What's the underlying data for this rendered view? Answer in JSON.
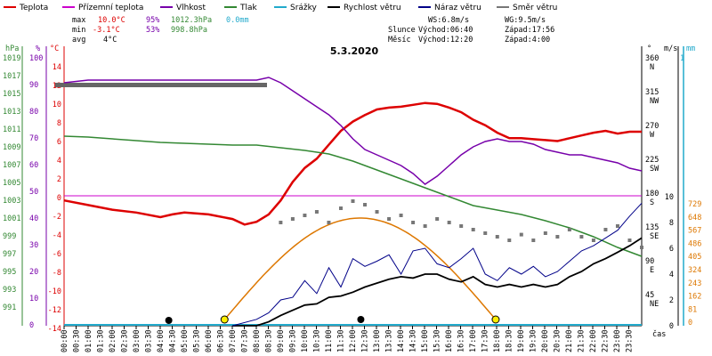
{
  "legend": [
    {
      "label": "Teplota",
      "color": "#dd0000"
    },
    {
      "label": "Přízemní teplota",
      "color": "#cc00cc"
    },
    {
      "label": "Vlhkost",
      "color": "#7700aa"
    },
    {
      "label": "Tlak",
      "color": "#338833"
    },
    {
      "label": "Srážky",
      "color": "#22aacc"
    },
    {
      "label": "Rychlost větru",
      "color": "#000000"
    },
    {
      "label": "Náraz větru",
      "color": "#000088"
    },
    {
      "label": "Směr větru",
      "color": "#777777"
    }
  ],
  "stats": {
    "max": {
      "label": "max",
      "temp": "10.0°C",
      "hum": "95%",
      "press": "1012.3hPa",
      "rain": "0.0mm"
    },
    "min": {
      "label": "min",
      "temp": "-3.1°C",
      "hum": "53%",
      "press": "998.8hPa"
    },
    "avg": {
      "label": "avg",
      "temp": "4°C"
    }
  },
  "wind_info": {
    "ws": "WS:6.8m/s",
    "wg": "WG:9.5m/s",
    "sun_label": "Slunce",
    "sun_rise": "Východ:06:40",
    "sun_set": "Západ:17:56",
    "moon_label": "Měsíc",
    "moon_rise": "Východ:12:20",
    "moon_set": "Západ:4:00"
  },
  "date": "5.3.2020",
  "axis_units": {
    "hpa": "hPa",
    "pct": "%",
    "deg": "°C",
    "dir": "°",
    "ms": "m/s",
    "mm": "mm",
    "cas": "čas"
  },
  "x_ticks": [
    "00:00",
    "00:30",
    "01:00",
    "01:30",
    "02:00",
    "02:30",
    "03:00",
    "03:30",
    "04:00",
    "04:30",
    "05:00",
    "05:30",
    "06:00",
    "06:30",
    "07:00",
    "07:30",
    "08:00",
    "08:30",
    "09:00",
    "09:30",
    "10:00",
    "10:30",
    "11:00",
    "11:30",
    "12:00",
    "12:30",
    "13:00",
    "13:30",
    "14:00",
    "14:30",
    "15:00",
    "15:30",
    "16:00",
    "16:30",
    "17:00",
    "17:30",
    "18:00",
    "18:30",
    "19:00",
    "19:30",
    "20:00",
    "20:30",
    "21:00",
    "21:30",
    "22:00",
    "22:30",
    "23:00",
    "23:30"
  ],
  "y_left_hpa": [
    "1019",
    "1017",
    "1015",
    "1013",
    "1011",
    "1009",
    "1007",
    "1005",
    "1003",
    "1001",
    "999",
    "997",
    "995",
    "993",
    "991"
  ],
  "y_left_pct": [
    "100",
    "90",
    "80",
    "70",
    "60",
    "50",
    "40",
    "30",
    "20",
    "10",
    "0"
  ],
  "y_left_deg": [
    "14",
    "12",
    "10",
    "8",
    "6",
    "4",
    "2",
    "0",
    "-2",
    "-4",
    "-6",
    "-8",
    "-10",
    "-12",
    "-14"
  ],
  "y_right_dir": [
    {
      "value": "360",
      "dir": "N"
    },
    {
      "value": "315",
      "dir": "NW"
    },
    {
      "value": "270",
      "dir": "W"
    },
    {
      "value": "225",
      "dir": "SW"
    },
    {
      "value": "180",
      "dir": "S"
    },
    {
      "value": "135",
      "dir": "SE"
    },
    {
      "value": "90",
      "dir": "E"
    },
    {
      "value": "45",
      "dir": "NE"
    }
  ],
  "y_right_ms": [
    "10",
    "8",
    "6",
    "4",
    "2",
    "0"
  ],
  "y_right_mm_top": [
    "1"
  ],
  "y_right_mm": [
    "729",
    "648",
    "567",
    "486",
    "405",
    "324",
    "243",
    "162",
    "81",
    "0"
  ],
  "chart_data": {
    "type": "line",
    "title": "5.3.2020",
    "xlabel": "čas",
    "x_range_hours": [
      0,
      24
    ],
    "series": [
      {
        "name": "Teplota",
        "unit": "°C",
        "color": "#dd0000",
        "points": [
          [
            0,
            -0.5
          ],
          [
            1,
            -1
          ],
          [
            2,
            -1.5
          ],
          [
            3,
            -1.8
          ],
          [
            4,
            -2.3
          ],
          [
            4.5,
            -2.0
          ],
          [
            5,
            -1.8
          ],
          [
            6,
            -2.0
          ],
          [
            7,
            -2.5
          ],
          [
            7.5,
            -3.1
          ],
          [
            8,
            -2.8
          ],
          [
            8.5,
            -2.0
          ],
          [
            9,
            -0.5
          ],
          [
            9.5,
            1.5
          ],
          [
            10,
            3.0
          ],
          [
            10.5,
            4.0
          ],
          [
            11,
            5.5
          ],
          [
            11.5,
            7.0
          ],
          [
            12,
            8.0
          ],
          [
            12.5,
            8.7
          ],
          [
            13,
            9.3
          ],
          [
            13.5,
            9.5
          ],
          [
            14,
            9.6
          ],
          [
            14.5,
            9.8
          ],
          [
            15,
            10.0
          ],
          [
            15.5,
            9.9
          ],
          [
            16,
            9.5
          ],
          [
            16.5,
            9.0
          ],
          [
            17,
            8.2
          ],
          [
            17.5,
            7.6
          ],
          [
            18,
            6.8
          ],
          [
            18.5,
            6.2
          ],
          [
            19,
            6.2
          ],
          [
            19.5,
            6.1
          ],
          [
            20,
            6.0
          ],
          [
            20.5,
            5.9
          ],
          [
            21,
            6.2
          ],
          [
            21.5,
            6.5
          ],
          [
            22,
            6.8
          ],
          [
            22.5,
            7.0
          ],
          [
            23,
            6.7
          ],
          [
            23.5,
            6.9
          ],
          [
            24,
            6.9
          ]
        ]
      },
      {
        "name": "Přízemní teplota",
        "unit": "°C",
        "color": "#cc00cc",
        "points": [
          [
            0,
            0
          ],
          [
            24,
            0
          ]
        ]
      },
      {
        "name": "Vlhkost",
        "unit": "%",
        "color": "#7700aa",
        "points": [
          [
            0,
            91
          ],
          [
            1,
            92
          ],
          [
            2,
            92
          ],
          [
            3,
            92
          ],
          [
            4,
            92
          ],
          [
            5,
            92
          ],
          [
            6,
            92
          ],
          [
            7,
            92
          ],
          [
            8,
            92
          ],
          [
            8.5,
            93
          ],
          [
            9,
            91
          ],
          [
            9.5,
            88
          ],
          [
            10,
            85
          ],
          [
            10.5,
            82
          ],
          [
            11,
            79
          ],
          [
            11.5,
            75
          ],
          [
            12,
            70
          ],
          [
            12.5,
            66
          ],
          [
            13,
            64
          ],
          [
            13.5,
            62
          ],
          [
            14,
            60
          ],
          [
            14.5,
            57
          ],
          [
            15,
            53
          ],
          [
            15.5,
            56
          ],
          [
            16,
            60
          ],
          [
            16.5,
            64
          ],
          [
            17,
            67
          ],
          [
            17.5,
            69
          ],
          [
            18,
            70
          ],
          [
            18.5,
            69
          ],
          [
            19,
            69
          ],
          [
            19.5,
            68
          ],
          [
            20,
            66
          ],
          [
            20.5,
            65
          ],
          [
            21,
            64
          ],
          [
            21.5,
            64
          ],
          [
            22,
            63
          ],
          [
            22.5,
            62
          ],
          [
            23,
            61
          ],
          [
            23.5,
            59
          ],
          [
            24,
            58
          ]
        ]
      },
      {
        "name": "Tlak",
        "unit": "hPa",
        "color": "#338833",
        "points": [
          [
            0,
            1012.3
          ],
          [
            1,
            1012.2
          ],
          [
            2,
            1012.0
          ],
          [
            3,
            1011.8
          ],
          [
            4,
            1011.6
          ],
          [
            5,
            1011.5
          ],
          [
            6,
            1011.4
          ],
          [
            7,
            1011.3
          ],
          [
            8,
            1011.3
          ],
          [
            9,
            1011.0
          ],
          [
            10,
            1010.7
          ],
          [
            11,
            1010.3
          ],
          [
            12,
            1009.5
          ],
          [
            13,
            1008.5
          ],
          [
            14,
            1007.5
          ],
          [
            15,
            1006.5
          ],
          [
            16,
            1005.5
          ],
          [
            17,
            1004.5
          ],
          [
            18,
            1004.0
          ],
          [
            19,
            1003.5
          ],
          [
            20,
            1002.8
          ],
          [
            21,
            1002.0
          ],
          [
            22,
            1001.0
          ],
          [
            23,
            999.8
          ],
          [
            24,
            998.8
          ]
        ]
      },
      {
        "name": "Srážky",
        "unit": "mm",
        "color": "#22aacc",
        "points": [
          [
            0,
            0
          ],
          [
            24,
            0
          ]
        ]
      },
      {
        "name": "Rychlost větru",
        "unit": "m/s",
        "color": "#000000",
        "points": [
          [
            7,
            0
          ],
          [
            8,
            0
          ],
          [
            8.5,
            0.3
          ],
          [
            9,
            0.8
          ],
          [
            9.5,
            1.2
          ],
          [
            10,
            1.6
          ],
          [
            10.5,
            1.7
          ],
          [
            11,
            2.2
          ],
          [
            11.5,
            2.3
          ],
          [
            12,
            2.6
          ],
          [
            12.5,
            3.0
          ],
          [
            13,
            3.3
          ],
          [
            13.5,
            3.6
          ],
          [
            14,
            3.8
          ],
          [
            14.5,
            3.7
          ],
          [
            15,
            4.0
          ],
          [
            15.5,
            4.0
          ],
          [
            16,
            3.6
          ],
          [
            16.5,
            3.4
          ],
          [
            17,
            3.8
          ],
          [
            17.5,
            3.2
          ],
          [
            18,
            3.0
          ],
          [
            18.5,
            3.2
          ],
          [
            19,
            3.0
          ],
          [
            19.5,
            3.2
          ],
          [
            20,
            3.0
          ],
          [
            20.5,
            3.2
          ],
          [
            21,
            3.8
          ],
          [
            21.5,
            4.2
          ],
          [
            22,
            4.8
          ],
          [
            22.5,
            5.2
          ],
          [
            23,
            5.7
          ],
          [
            23.5,
            6.2
          ],
          [
            24,
            6.8
          ]
        ]
      },
      {
        "name": "Náraz větru",
        "unit": "m/s",
        "color": "#000088",
        "points": [
          [
            7,
            0
          ],
          [
            8,
            0.5
          ],
          [
            8.5,
            1.0
          ],
          [
            9,
            2.0
          ],
          [
            9.5,
            2.2
          ],
          [
            10,
            3.5
          ],
          [
            10.5,
            2.5
          ],
          [
            11,
            4.5
          ],
          [
            11.5,
            3.0
          ],
          [
            12,
            5.2
          ],
          [
            12.5,
            4.6
          ],
          [
            13,
            5.0
          ],
          [
            13.5,
            5.5
          ],
          [
            14,
            4.0
          ],
          [
            14.5,
            5.8
          ],
          [
            15,
            6.0
          ],
          [
            15.5,
            4.8
          ],
          [
            16,
            4.5
          ],
          [
            16.5,
            5.2
          ],
          [
            17,
            6.0
          ],
          [
            17.5,
            4.0
          ],
          [
            18,
            3.5
          ],
          [
            18.5,
            4.5
          ],
          [
            19,
            4.0
          ],
          [
            19.5,
            4.6
          ],
          [
            20,
            3.8
          ],
          [
            20.5,
            4.2
          ],
          [
            21,
            5.0
          ],
          [
            21.5,
            5.8
          ],
          [
            22,
            6.2
          ],
          [
            22.5,
            6.8
          ],
          [
            23,
            7.4
          ],
          [
            23.5,
            8.5
          ],
          [
            24,
            9.5
          ]
        ]
      },
      {
        "name": "Směr větru",
        "unit": "°",
        "color": "#777777",
        "points": [
          [
            9,
            145
          ],
          [
            9.5,
            150
          ],
          [
            10,
            155
          ],
          [
            10.5,
            160
          ],
          [
            11,
            145
          ],
          [
            11.5,
            165
          ],
          [
            12,
            175
          ],
          [
            12.5,
            170
          ],
          [
            13,
            160
          ],
          [
            13.5,
            150
          ],
          [
            14,
            155
          ],
          [
            14.5,
            145
          ],
          [
            15,
            140
          ],
          [
            15.5,
            150
          ],
          [
            16,
            145
          ],
          [
            16.5,
            140
          ],
          [
            17,
            135
          ],
          [
            17.5,
            130
          ],
          [
            18,
            125
          ],
          [
            18.5,
            120
          ],
          [
            19,
            128
          ],
          [
            19.5,
            120
          ],
          [
            20,
            130
          ],
          [
            20.5,
            125
          ],
          [
            21,
            135
          ],
          [
            21.5,
            125
          ],
          [
            22,
            120
          ],
          [
            22.5,
            135
          ],
          [
            23,
            140
          ],
          [
            23.5,
            120
          ],
          [
            24,
            110
          ]
        ]
      }
    ],
    "solar": {
      "rise": "06:40",
      "set": "17:56",
      "moon_rise": "12:20",
      "moon_set": "4:00"
    }
  }
}
